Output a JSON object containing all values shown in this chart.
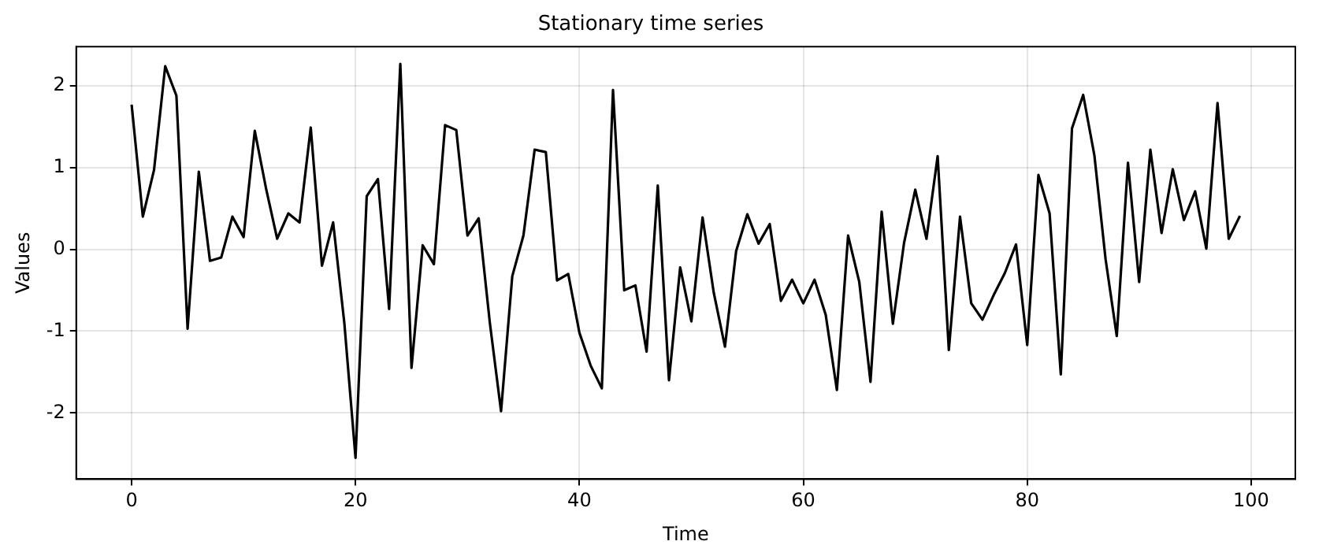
{
  "chart_data": {
    "type": "line",
    "title": "Stationary time series",
    "xlabel": "Time",
    "ylabel": "Values",
    "x": [
      0,
      1,
      2,
      3,
      4,
      5,
      6,
      7,
      8,
      9,
      10,
      11,
      12,
      13,
      14,
      15,
      16,
      17,
      18,
      19,
      20,
      21,
      22,
      23,
      24,
      25,
      26,
      27,
      28,
      29,
      30,
      31,
      32,
      33,
      34,
      35,
      36,
      37,
      38,
      39,
      40,
      41,
      42,
      43,
      44,
      45,
      46,
      47,
      48,
      49,
      50,
      51,
      52,
      53,
      54,
      55,
      56,
      57,
      58,
      59,
      60,
      61,
      62,
      63,
      64,
      65,
      66,
      67,
      68,
      69,
      70,
      71,
      72,
      73,
      74,
      75,
      76,
      77,
      78,
      79,
      80,
      81,
      82,
      83,
      84,
      85,
      86,
      87,
      88,
      89,
      90,
      91,
      92,
      93,
      94,
      95,
      96,
      97,
      98,
      99
    ],
    "series": [
      {
        "color": "#000000",
        "values": [
          1.77,
          0.4,
          0.97,
          2.24,
          1.88,
          -0.97,
          0.95,
          -0.14,
          -0.1,
          0.4,
          0.15,
          1.45,
          0.75,
          0.13,
          0.44,
          0.33,
          1.49,
          -0.2,
          0.33,
          -0.9,
          -2.55,
          0.65,
          0.86,
          -0.73,
          2.27,
          -1.45,
          0.05,
          -0.18,
          1.52,
          1.46,
          0.17,
          0.38,
          -0.9,
          -1.98,
          -0.33,
          0.17,
          1.22,
          1.19,
          -0.38,
          -0.3,
          -1.02,
          -1.42,
          -1.7,
          1.95,
          -0.5,
          -0.44,
          -1.25,
          0.78,
          -1.6,
          -0.22,
          -0.88,
          0.39,
          -0.53,
          -1.19,
          -0.02,
          0.43,
          0.07,
          0.31,
          -0.63,
          -0.37,
          -0.66,
          -0.37,
          -0.8,
          -1.72,
          0.17,
          -0.4,
          -1.62,
          0.46,
          -0.91,
          0.08,
          0.73,
          0.13,
          1.14,
          -1.23,
          0.4,
          -0.66,
          -0.86,
          -0.56,
          -0.29,
          0.06,
          -1.17,
          0.91,
          0.44,
          -1.53,
          1.48,
          1.89,
          1.15,
          -0.12,
          -1.06,
          1.06,
          -0.4,
          1.22,
          0.2,
          0.98,
          0.36,
          0.71,
          0.01,
          1.79,
          0.13,
          0.41
        ]
      }
    ],
    "xlim": [
      -4.95,
      103.95
    ],
    "xticks": [
      0,
      20,
      40,
      60,
      80,
      100
    ],
    "ylim": [
      -2.81,
      2.48
    ],
    "yticks": [
      -2,
      -1,
      0,
      1,
      2
    ],
    "grid": true,
    "marker": "none",
    "line_style": "solid"
  }
}
